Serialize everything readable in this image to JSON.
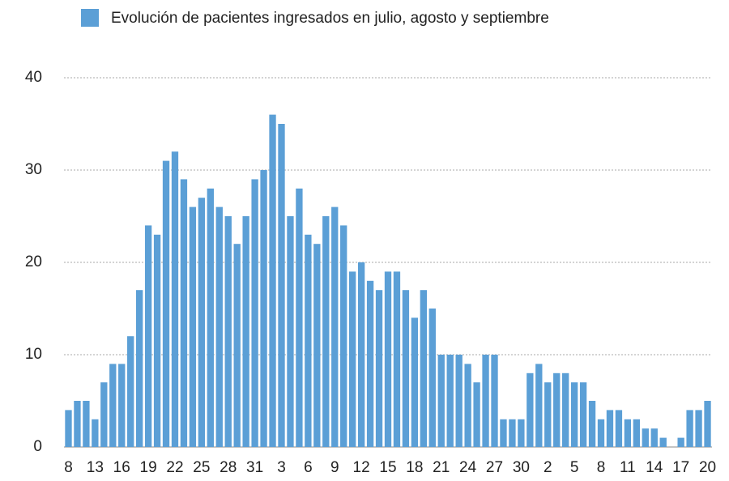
{
  "chart_data": {
    "type": "bar",
    "legend_label": "Evolución de pacientes ingresados en julio, agosto y septiembre",
    "color": "#5b9fd6",
    "categories": [
      "8",
      null,
      null,
      "13",
      null,
      null,
      "16",
      null,
      null,
      "19",
      null,
      null,
      "22",
      null,
      null,
      "25",
      null,
      null,
      "28",
      null,
      null,
      "31",
      null,
      null,
      "3",
      null,
      null,
      "6",
      null,
      null,
      "9",
      null,
      null,
      "12",
      null,
      null,
      "15",
      null,
      null,
      "18",
      null,
      null,
      "21",
      null,
      null,
      "24",
      null,
      null,
      "27",
      null,
      null,
      "30",
      null,
      null,
      "2",
      null,
      null,
      "5",
      null,
      null,
      "8",
      null,
      null,
      "11",
      null,
      null,
      "14",
      null,
      null,
      "17",
      null,
      null,
      "20"
    ],
    "values": [
      4,
      5,
      5,
      3,
      7,
      9,
      9,
      12,
      17,
      24,
      23,
      31,
      32,
      29,
      26,
      27,
      28,
      26,
      25,
      22,
      25,
      29,
      30,
      36,
      35,
      25,
      28,
      23,
      22,
      25,
      26,
      24,
      19,
      20,
      18,
      17,
      19,
      19,
      17,
      14,
      17,
      15,
      10,
      10,
      10,
      9,
      7,
      10,
      10,
      3,
      3,
      3,
      8,
      9,
      7,
      8,
      8,
      7,
      7,
      5,
      3,
      4,
      4,
      3,
      3,
      2,
      2,
      1,
      0,
      1,
      4,
      4,
      5
    ],
    "ylim": [
      0,
      40
    ],
    "yticks": [
      0,
      10,
      20,
      30,
      40
    ],
    "grid": true
  }
}
